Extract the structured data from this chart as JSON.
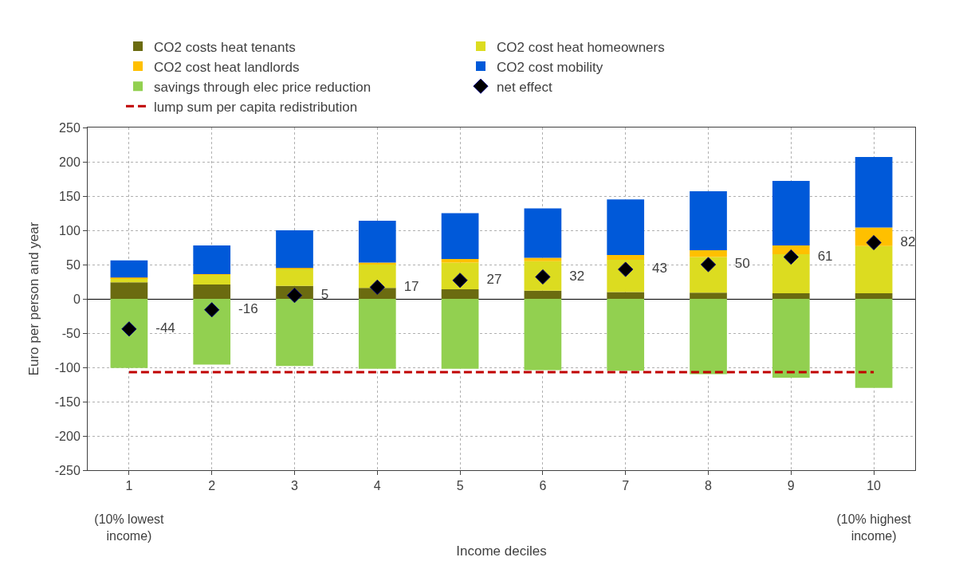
{
  "chart_data": {
    "type": "bar",
    "stacked": true,
    "xlabel": "Income deciles",
    "ylabel": "Euro per person and year",
    "categories": [
      "1\n\n(10% lowest\nincome)",
      "2",
      "3",
      "4",
      "5",
      "6",
      "7",
      "8",
      "9",
      "10\n\n(10% highest\nincome)"
    ],
    "ylim": [
      -250,
      250
    ],
    "yticks": [
      -250,
      -200,
      -150,
      -100,
      -50,
      0,
      50,
      100,
      150,
      200,
      250
    ],
    "grid": true,
    "legend": "top",
    "series": [
      {
        "name": "CO2 costs heat tenants",
        "color": "#6b6b10",
        "values": [
          24,
          21,
          19,
          16,
          14,
          12,
          10,
          9,
          8,
          8
        ]
      },
      {
        "name": "CO2 cost heat homeowners",
        "color": "#dcdc20",
        "values": [
          6,
          14,
          25,
          34,
          39,
          43,
          47,
          52,
          57,
          69
        ]
      },
      {
        "name": "CO2 cost heat landlords",
        "color": "#ffc000",
        "values": [
          1,
          1,
          1,
          3,
          5,
          5,
          7,
          10,
          13,
          27
        ]
      },
      {
        "name": "CO2 cost mobility",
        "color": "#0059d9",
        "values": [
          25,
          42,
          55,
          61,
          67,
          72,
          81,
          86,
          94,
          103
        ]
      },
      {
        "name": "savings through elec price reduction",
        "color": "#92d050",
        "values": [
          -101,
          -96,
          -98,
          -102,
          -102,
          -104,
          -105,
          -110,
          -115,
          -130
        ]
      },
      {
        "name": "net effect",
        "type": "scatter",
        "marker": "diamond",
        "color": "#000000",
        "values": [
          -44,
          -16,
          5,
          17,
          27,
          32,
          43,
          50,
          61,
          82
        ],
        "value_labels": [
          "-44",
          "-16",
          "5",
          "17",
          "27",
          "32",
          "43",
          "50",
          "61",
          "82"
        ]
      },
      {
        "name": "lump sum per capita redistribution",
        "type": "line",
        "line_style": "dashed",
        "marker": "none",
        "color": "#c00000",
        "values": [
          -107,
          -107,
          -107,
          -107,
          -107,
          -107,
          -107,
          -107,
          -107,
          -107
        ]
      }
    ]
  }
}
